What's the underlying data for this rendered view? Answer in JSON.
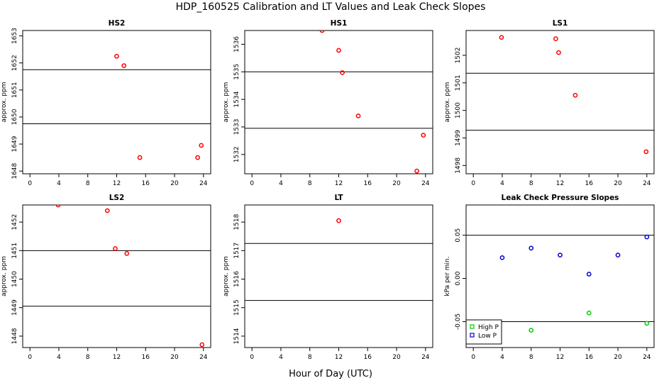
{
  "figure": {
    "title": "HDP_160525  Calibration and LT Values and Leak Check Slopes",
    "xlabel": "Hour of Day (UTC)"
  },
  "chart_data": [
    {
      "type": "scatter",
      "title": "HS2",
      "ylabel": "approx. ppm",
      "xlim": [
        -1,
        25
      ],
      "ylim": [
        1647.9,
        1653.2
      ],
      "x_ticks": [
        0,
        4,
        8,
        12,
        16,
        20,
        24
      ],
      "y_ticks": [
        1648,
        1649,
        1650,
        1651,
        1652,
        1653
      ],
      "hlines": [
        1651.75,
        1649.75
      ],
      "series": [
        {
          "color": "#ff0000",
          "x": [
            12.0,
            13.0,
            15.2,
            23.2,
            23.7
          ],
          "y": [
            1652.25,
            1651.9,
            1648.5,
            1648.5,
            1648.95
          ]
        }
      ]
    },
    {
      "type": "scatter",
      "title": "HS1",
      "ylabel": "approx. ppm",
      "xlim": [
        -1,
        25
      ],
      "ylim": [
        1531.3,
        1536.5
      ],
      "x_ticks": [
        0,
        4,
        8,
        12,
        16,
        20,
        24
      ],
      "y_ticks": [
        1532,
        1533,
        1534,
        1535,
        1536
      ],
      "hlines": [
        1535.0,
        1532.95
      ],
      "series": [
        {
          "color": "#ff0000",
          "x": [
            9.7,
            12.0,
            12.5,
            14.7,
            22.8,
            23.7
          ],
          "y": [
            1536.5,
            1535.78,
            1534.97,
            1533.4,
            1531.4,
            1532.7
          ]
        }
      ]
    },
    {
      "type": "scatter",
      "title": "LS1",
      "ylabel": "approx. ppm",
      "xlim": [
        -1,
        25
      ],
      "ylim": [
        1497.7,
        1502.9
      ],
      "x_ticks": [
        0,
        4,
        8,
        12,
        16,
        20,
        24
      ],
      "y_ticks": [
        1498,
        1499,
        1500,
        1501,
        1502
      ],
      "hlines": [
        1501.35,
        1499.28
      ],
      "series": [
        {
          "color": "#ff0000",
          "x": [
            3.9,
            11.4,
            11.8,
            14.1,
            23.9
          ],
          "y": [
            1502.65,
            1502.6,
            1502.1,
            1500.55,
            1498.5
          ]
        }
      ]
    },
    {
      "type": "scatter",
      "title": "LS2",
      "ylabel": "approx. ppm",
      "xlim": [
        -1,
        25
      ],
      "ylim": [
        1447.6,
        1452.6
      ],
      "x_ticks": [
        0,
        4,
        8,
        12,
        16,
        20,
        24
      ],
      "y_ticks": [
        1448,
        1449,
        1450,
        1451,
        1452
      ],
      "hlines": [
        1451.0,
        1449.05
      ],
      "series": [
        {
          "color": "#ff0000",
          "x": [
            3.9,
            10.7,
            11.8,
            13.4,
            23.8
          ],
          "y": [
            1452.6,
            1452.4,
            1451.07,
            1450.9,
            1447.7
          ]
        }
      ]
    },
    {
      "type": "scatter",
      "title": "LT",
      "ylabel": "approx. ppm",
      "xlim": [
        -1,
        25
      ],
      "ylim": [
        1513.6,
        1518.6
      ],
      "x_ticks": [
        0,
        4,
        8,
        12,
        16,
        20,
        24
      ],
      "y_ticks": [
        1514,
        1515,
        1516,
        1517,
        1518
      ],
      "hlines": [
        1517.25,
        1515.25
      ],
      "series": [
        {
          "color": "#ff0000",
          "x": [
            12.0
          ],
          "y": [
            1518.05
          ]
        }
      ]
    },
    {
      "type": "scatter",
      "title": "Leak Check Pressure Slopes",
      "ylabel": "kPa per min.",
      "xlim": [
        -1,
        25
      ],
      "ylim": [
        -0.08,
        0.085
      ],
      "x_ticks": [
        0,
        4,
        8,
        12,
        16,
        20,
        24
      ],
      "y_ticks": [
        -0.05,
        0.0,
        0.05
      ],
      "y_tick_labels": [
        "-0.05",
        "0.00",
        "0.05"
      ],
      "hlines": [
        0.05,
        -0.05
      ],
      "legend": {
        "position": "bottom-left"
      },
      "series": [
        {
          "name": "High P",
          "color": "#00cc00",
          "x": [
            8,
            16,
            24
          ],
          "y": [
            -0.06,
            -0.04,
            -0.052
          ]
        },
        {
          "name": "Low P",
          "color": "#0000cc",
          "x": [
            4,
            8,
            12,
            16,
            20,
            24
          ],
          "y": [
            0.024,
            0.035,
            0.027,
            0.005,
            0.027,
            0.048
          ]
        }
      ]
    }
  ]
}
